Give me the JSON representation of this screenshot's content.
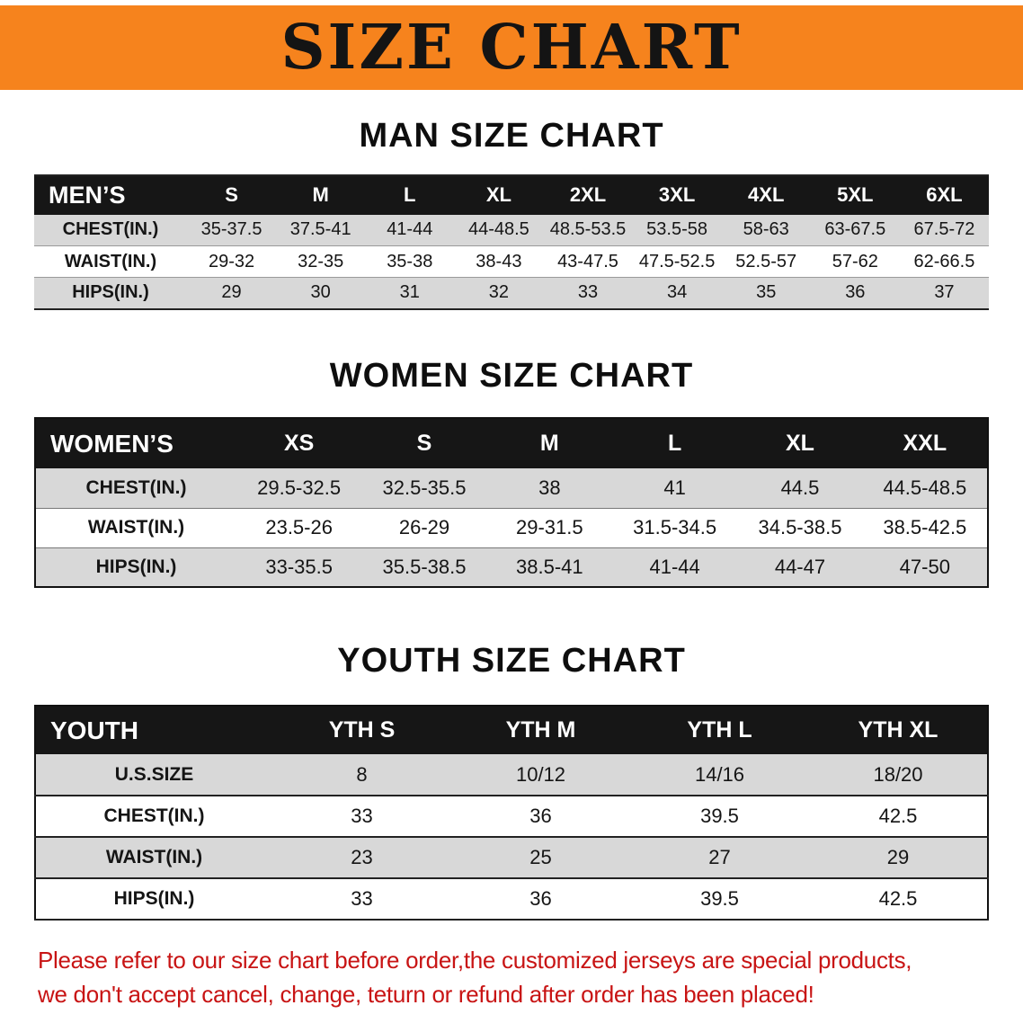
{
  "banner": {
    "title": "SIZE CHART"
  },
  "colors": {
    "banner_bg": "#F6831D",
    "table_header_bg": "#161616",
    "table_header_text": "#FFFFFF",
    "row_stripe": "#D8D8D8",
    "disclaimer_text": "#C81414"
  },
  "chart_data": [
    {
      "type": "table",
      "title": "MAN SIZE CHART",
      "columns": [
        "MEN’S",
        "S",
        "M",
        "L",
        "XL",
        "2XL",
        "3XL",
        "4XL",
        "5XL",
        "6XL"
      ],
      "rows": [
        [
          "CHEST(IN.)",
          "35-37.5",
          "37.5-41",
          "41-44",
          "44-48.5",
          "48.5-53.5",
          "53.5-58",
          "58-63",
          "63-67.5",
          "67.5-72"
        ],
        [
          "WAIST(IN.)",
          "29-32",
          "32-35",
          "35-38",
          "38-43",
          "43-47.5",
          "47.5-52.5",
          "52.5-57",
          "57-62",
          "62-66.5"
        ],
        [
          "HIPS(IN.)",
          "29",
          "30",
          "31",
          "32",
          "33",
          "34",
          "35",
          "36",
          "37"
        ]
      ]
    },
    {
      "type": "table",
      "title": "WOMEN SIZE CHART",
      "columns": [
        "WOMEN’S",
        "XS",
        "S",
        "M",
        "L",
        "XL",
        "XXL"
      ],
      "rows": [
        [
          "CHEST(IN.)",
          "29.5-32.5",
          "32.5-35.5",
          "38",
          "41",
          "44.5",
          "44.5-48.5"
        ],
        [
          "WAIST(IN.)",
          "23.5-26",
          "26-29",
          "29-31.5",
          "31.5-34.5",
          "34.5-38.5",
          "38.5-42.5"
        ],
        [
          "HIPS(IN.)",
          "33-35.5",
          "35.5-38.5",
          "38.5-41",
          "41-44",
          "44-47",
          "47-50"
        ]
      ]
    },
    {
      "type": "table",
      "title": "YOUTH SIZE CHART",
      "columns": [
        "YOUTH",
        "YTH S",
        "YTH M",
        "YTH L",
        "YTH XL"
      ],
      "rows": [
        [
          "U.S.SIZE",
          "8",
          "10/12",
          "14/16",
          "18/20"
        ],
        [
          "CHEST(IN.)",
          "33",
          "36",
          "39.5",
          "42.5"
        ],
        [
          "WAIST(IN.)",
          "23",
          "25",
          "27",
          "29"
        ],
        [
          "HIPS(IN.)",
          "33",
          "36",
          "39.5",
          "42.5"
        ]
      ]
    }
  ],
  "footer": {
    "line1": "Please refer to our size chart before order,the customized jerseys are special products,",
    "line2": "we don't accept cancel, change, teturn or refund after order has been placed!"
  }
}
